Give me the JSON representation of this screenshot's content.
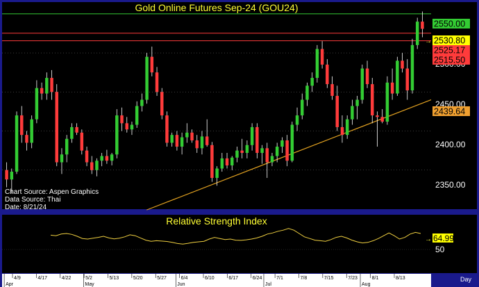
{
  "colors": {
    "frame": "#1a1a8c",
    "panel_bg": "#000000",
    "axis_bg": "#ffffff",
    "title": "#ffff33",
    "up": "#33cc33",
    "down": "#ff3b3b",
    "wick": "#ffffff",
    "rsi_line": "#f0d040",
    "trendline": "#e0a020",
    "grid": "#777777"
  },
  "main_chart": {
    "title": "Gold Online Futures Sep-24 (GOU24)",
    "info_lines": [
      "Chart Source: Aspen Graphics",
      "Data Source: Thai",
      "Date: 8/21/24"
    ],
    "y_ticks": [
      "2350.00",
      "2400.00",
      "2450.00",
      "2500.00"
    ],
    "price_labels": [
      {
        "text": "2550.00",
        "bg": "#33cc33",
        "fg": "#000000"
      },
      {
        "text": "2530.80",
        "bg": "#ffff00",
        "fg": "#000000"
      },
      {
        "text": "2525.17",
        "bg": "#ff3b3b",
        "fg": "#000000"
      },
      {
        "text": "2515.50",
        "bg": "#ff3b3b",
        "fg": "#000000"
      },
      {
        "text": "2439.64",
        "bg": "#f0a030",
        "fg": "#000000"
      }
    ]
  },
  "rsi_chart": {
    "title": "Relative Strength Index",
    "y_tick": "50",
    "value_label": "64.99"
  },
  "x_axis": {
    "day_ticks": [
      "4/9",
      "4/17",
      "4/22",
      "5/2",
      "5/13",
      "5/20",
      "5/27",
      "6/4",
      "6/10",
      "6/17",
      "6/24",
      "7/1",
      "7/8",
      "7/15",
      "7/23",
      "8/1",
      "8/13"
    ],
    "month_labels": [
      "Apr",
      "May",
      "Jun",
      "Jul",
      "Aug"
    ],
    "period_label": "Day"
  },
  "chart_data": {
    "type": "candlestick",
    "title": "Gold Online Futures Sep-24 (GOU24)",
    "ylim": [
      2300,
      2565
    ],
    "ohlc_columns": [
      "open",
      "high",
      "low",
      "close"
    ],
    "candles": [
      [
        2350,
        2360,
        2328,
        2338
      ],
      [
        2338,
        2352,
        2320,
        2348
      ],
      [
        2348,
        2425,
        2345,
        2420
      ],
      [
        2420,
        2432,
        2385,
        2395
      ],
      [
        2395,
        2400,
        2375,
        2385
      ],
      [
        2385,
        2420,
        2378,
        2415
      ],
      [
        2415,
        2465,
        2410,
        2455
      ],
      [
        2455,
        2462,
        2440,
        2448
      ],
      [
        2448,
        2475,
        2440,
        2468
      ],
      [
        2468,
        2478,
        2440,
        2450
      ],
      [
        2450,
        2460,
        2355,
        2360
      ],
      [
        2360,
        2378,
        2345,
        2370
      ],
      [
        2370,
        2395,
        2360,
        2390
      ],
      [
        2390,
        2410,
        2385,
        2405
      ],
      [
        2405,
        2410,
        2395,
        2398
      ],
      [
        2398,
        2402,
        2370,
        2375
      ],
      [
        2375,
        2380,
        2355,
        2360
      ],
      [
        2360,
        2368,
        2345,
        2350
      ],
      [
        2350,
        2365,
        2342,
        2362
      ],
      [
        2362,
        2372,
        2355,
        2368
      ],
      [
        2368,
        2376,
        2358,
        2362
      ],
      [
        2362,
        2372,
        2356,
        2370
      ],
      [
        2370,
        2428,
        2365,
        2420
      ],
      [
        2420,
        2430,
        2400,
        2410
      ],
      [
        2410,
        2418,
        2398,
        2402
      ],
      [
        2402,
        2412,
        2395,
        2408
      ],
      [
        2408,
        2438,
        2404,
        2432
      ],
      [
        2432,
        2448,
        2425,
        2440
      ],
      [
        2440,
        2500,
        2435,
        2495
      ],
      [
        2495,
        2508,
        2470,
        2475
      ],
      [
        2475,
        2482,
        2445,
        2450
      ],
      [
        2450,
        2455,
        2415,
        2420
      ],
      [
        2420,
        2425,
        2380,
        2385
      ],
      [
        2385,
        2398,
        2380,
        2395
      ],
      [
        2395,
        2400,
        2375,
        2380
      ],
      [
        2380,
        2398,
        2370,
        2392
      ],
      [
        2392,
        2410,
        2385,
        2398
      ],
      [
        2398,
        2402,
        2385,
        2388
      ],
      [
        2388,
        2395,
        2372,
        2378
      ],
      [
        2378,
        2400,
        2370,
        2393
      ],
      [
        2393,
        2415,
        2380,
        2382
      ],
      [
        2382,
        2386,
        2335,
        2340
      ],
      [
        2340,
        2355,
        2330,
        2352
      ],
      [
        2352,
        2372,
        2348,
        2365
      ],
      [
        2365,
        2372,
        2352,
        2356
      ],
      [
        2356,
        2368,
        2350,
        2366
      ],
      [
        2366,
        2380,
        2360,
        2375
      ],
      [
        2375,
        2390,
        2365,
        2372
      ],
      [
        2372,
        2388,
        2365,
        2382
      ],
      [
        2382,
        2410,
        2375,
        2405
      ],
      [
        2405,
        2410,
        2365,
        2372
      ],
      [
        2372,
        2382,
        2358,
        2378
      ],
      [
        2378,
        2385,
        2340,
        2360
      ],
      [
        2360,
        2372,
        2355,
        2368
      ],
      [
        2368,
        2385,
        2360,
        2380
      ],
      [
        2380,
        2392,
        2372,
        2388
      ],
      [
        2388,
        2395,
        2355,
        2362
      ],
      [
        2362,
        2412,
        2360,
        2408
      ],
      [
        2408,
        2430,
        2400,
        2420
      ],
      [
        2420,
        2448,
        2415,
        2440
      ],
      [
        2440,
        2462,
        2432,
        2458
      ],
      [
        2458,
        2475,
        2450,
        2468
      ],
      [
        2468,
        2510,
        2462,
        2505
      ],
      [
        2505,
        2515,
        2480,
        2485
      ],
      [
        2485,
        2492,
        2455,
        2460
      ],
      [
        2460,
        2470,
        2440,
        2445
      ],
      [
        2445,
        2458,
        2400,
        2405
      ],
      [
        2405,
        2420,
        2385,
        2395
      ],
      [
        2395,
        2420,
        2390,
        2415
      ],
      [
        2415,
        2440,
        2408,
        2432
      ],
      [
        2432,
        2445,
        2415,
        2440
      ],
      [
        2440,
        2485,
        2435,
        2480
      ],
      [
        2480,
        2490,
        2455,
        2460
      ],
      [
        2460,
        2468,
        2410,
        2420
      ],
      [
        2420,
        2425,
        2380,
        2418
      ],
      [
        2418,
        2428,
        2410,
        2412
      ],
      [
        2412,
        2470,
        2408,
        2462
      ],
      [
        2462,
        2480,
        2440,
        2448
      ],
      [
        2448,
        2495,
        2445,
        2490
      ],
      [
        2490,
        2500,
        2475,
        2480
      ],
      [
        2480,
        2492,
        2440,
        2452
      ],
      [
        2452,
        2518,
        2448,
        2510
      ],
      [
        2510,
        2545,
        2505,
        2540
      ],
      [
        2540,
        2553,
        2520,
        2530.8
      ]
    ],
    "horizontal_levels": [
      {
        "value": 2550.0,
        "color": "#33cc33"
      },
      {
        "value": 2525.17,
        "color": "#ff3b3b"
      },
      {
        "value": 2515.5,
        "color": "#ff3b3b"
      }
    ],
    "last_price": 2530.8,
    "trendline": {
      "start": [
        0.337,
        2299
      ],
      "end": [
        1.0,
        2440
      ],
      "label": 2439.64
    },
    "rsi": {
      "name": "Relative Strength Index",
      "ylim": [
        30,
        80
      ],
      "last": 64.99,
      "values": [
        63.5,
        63.0,
        64.5,
        65.0,
        64.2,
        62.5,
        60.5,
        60.0,
        60.8,
        61.5,
        62.5,
        61.0,
        60.2,
        60.8,
        62.0,
        63.8,
        63.0,
        61.0,
        59.0,
        58.0,
        58.5,
        58.2,
        57.8,
        57.0,
        56.0,
        55.5,
        56.2,
        57.0,
        57.5,
        58.0,
        60.0,
        61.5,
        60.5,
        59.5,
        60.0,
        59.0,
        58.8,
        59.3,
        60.0,
        61.0,
        62.5,
        64.5,
        65.5,
        67.0,
        68.0,
        69.5,
        68.0,
        65.0,
        62.0,
        60.5,
        59.0,
        58.5,
        58.0,
        59.5,
        61.5,
        62.5,
        61.0,
        59.0,
        57.5,
        56.5,
        57.0,
        58.5,
        60.5,
        63.0,
        65.5,
        63.0,
        60.0,
        61.5,
        64.5,
        66.0,
        64.99
      ]
    }
  }
}
